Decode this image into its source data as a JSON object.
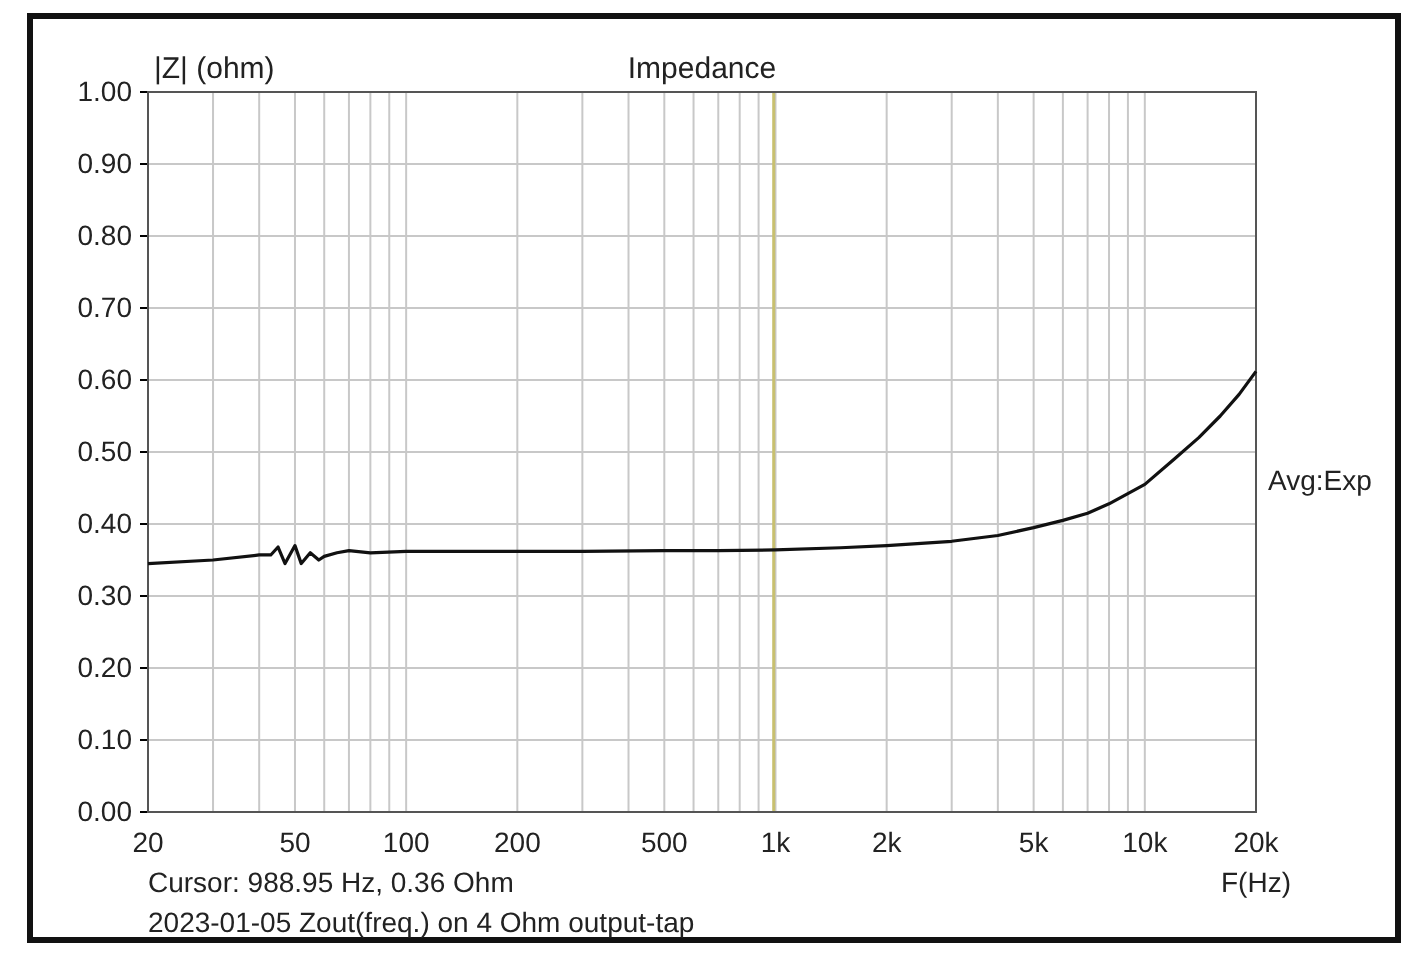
{
  "chart_data": {
    "type": "line",
    "title": "Impedance",
    "ylabel": "|Z| (ohm)",
    "xlabel": "F(Hz)",
    "log": "x",
    "x": [
      20,
      30,
      40,
      43,
      45,
      47,
      50,
      52,
      55,
      58,
      60,
      65,
      70,
      80,
      100,
      150,
      200,
      300,
      500,
      700,
      1000,
      1500,
      2000,
      3000,
      4000,
      5000,
      6000,
      7000,
      8000,
      10000,
      12000,
      14000,
      16000,
      18000,
      20000
    ],
    "series": [
      {
        "color": "#111111",
        "values": [
          0.345,
          0.35,
          0.357,
          0.357,
          0.368,
          0.345,
          0.37,
          0.345,
          0.36,
          0.35,
          0.355,
          0.36,
          0.363,
          0.36,
          0.362,
          0.362,
          0.362,
          0.362,
          0.363,
          0.363,
          0.364,
          0.367,
          0.37,
          0.376,
          0.384,
          0.395,
          0.405,
          0.415,
          0.428,
          0.455,
          0.49,
          0.52,
          0.55,
          0.58,
          0.612
        ]
      }
    ],
    "xlim": [
      20,
      20000
    ],
    "ylim": [
      0,
      1
    ],
    "xticks": [
      20,
      {
        "value": 30,
        "label": null
      },
      {
        "value": 40,
        "label": null
      },
      50,
      {
        "value": 60,
        "label": null
      },
      {
        "value": 70,
        "label": null
      },
      {
        "value": 80,
        "label": null
      },
      {
        "value": 90,
        "label": null
      },
      100,
      200,
      {
        "value": 300,
        "label": null
      },
      {
        "value": 400,
        "label": null
      },
      500,
      {
        "value": 600,
        "label": null
      },
      {
        "value": 700,
        "label": null
      },
      {
        "value": 800,
        "label": null
      },
      {
        "value": 900,
        "label": null
      },
      {
        "value": 1000,
        "label": "1k"
      },
      {
        "value": 2000,
        "label": "2k"
      },
      {
        "value": 3000,
        "label": null
      },
      {
        "value": 4000,
        "label": null
      },
      {
        "value": 5000,
        "label": "5k"
      },
      {
        "value": 6000,
        "label": null
      },
      {
        "value": 7000,
        "label": null
      },
      {
        "value": 8000,
        "label": null
      },
      {
        "value": 9000,
        "label": null
      },
      {
        "value": 10000,
        "label": "10k"
      },
      {
        "value": 20000,
        "label": "20k"
      }
    ],
    "yticks": [
      {
        "value": 0,
        "label": "0.00"
      },
      {
        "value": 0.1,
        "label": "0.10"
      },
      {
        "value": 0.2,
        "label": "0.20"
      },
      {
        "value": 0.3,
        "label": "0.30"
      },
      {
        "value": 0.4,
        "label": "0.40"
      },
      {
        "value": 0.5,
        "label": "0.50"
      },
      {
        "value": 0.6,
        "label": "0.60"
      },
      {
        "value": 0.7,
        "label": "0.70"
      },
      {
        "value": 0.8,
        "label": "0.80"
      },
      {
        "value": 0.9,
        "label": "0.90"
      },
      {
        "value": 1,
        "label": "1.00"
      }
    ],
    "grid": true,
    "ref_lines": [
      {
        "axis": "x",
        "value": 988.95,
        "label": null,
        "color": "#c8c070"
      }
    ],
    "annotations": [
      "Avg:Exp",
      "Cursor: 988.95 Hz, 0.36 Ohm",
      "2023-01-05 Zout(freq.) on 4 Ohm output-tap"
    ]
  }
}
